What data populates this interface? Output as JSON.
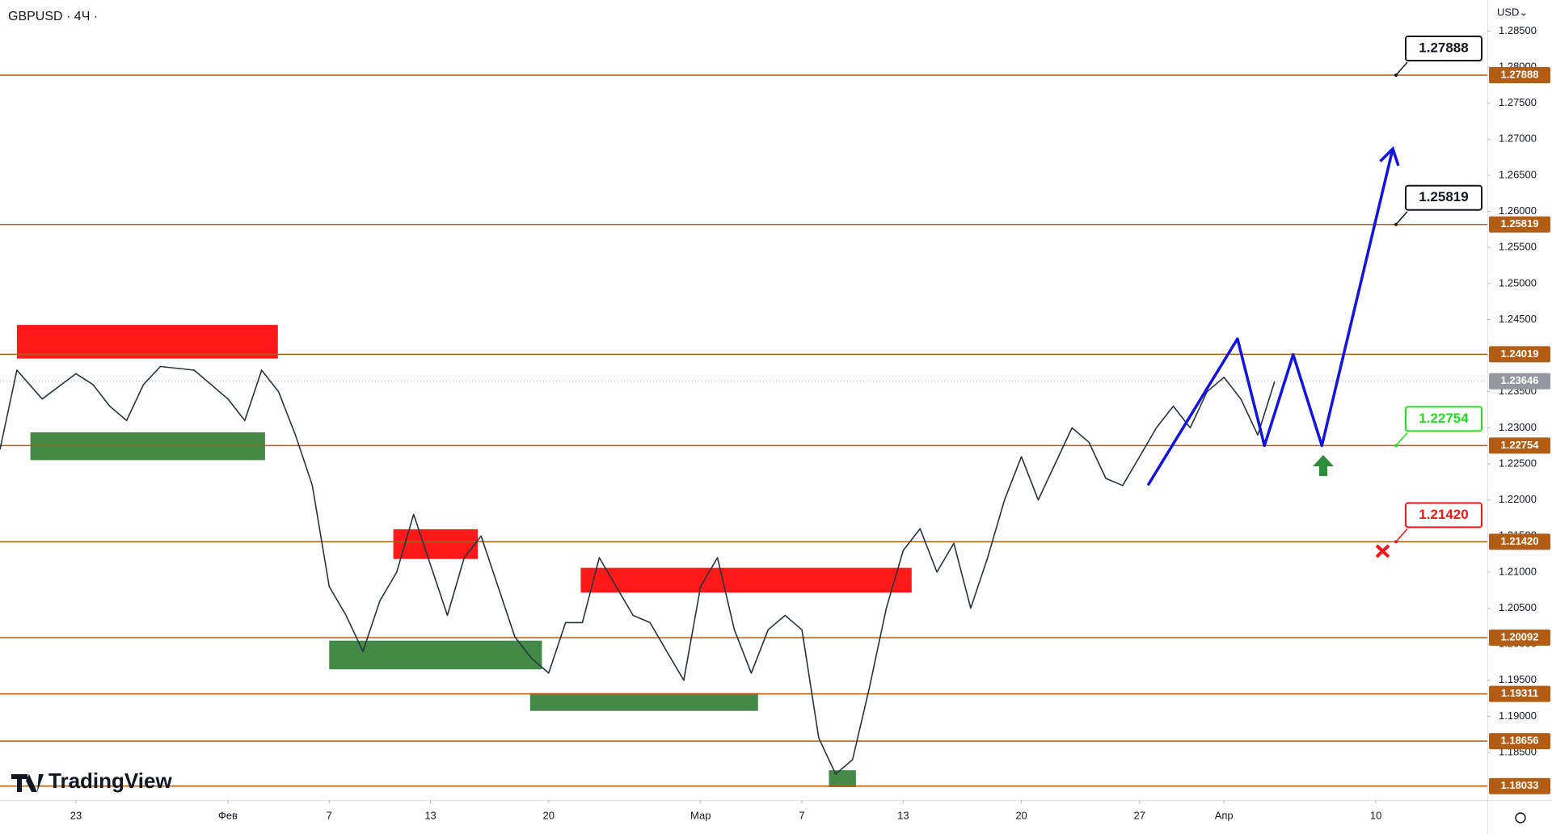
{
  "chart_data": {
    "type": "line",
    "title": "GBPUSD · 4Ч ·",
    "currency": "USD⌄",
    "brand": "TradingView",
    "xlim": [
      -4.5,
      83.6
    ],
    "ylim": [
      1.1784,
      1.2893
    ],
    "xticks": [
      {
        "value": 0,
        "label": "23"
      },
      {
        "value": 9,
        "label": "Фев"
      },
      {
        "value": 15,
        "label": "7"
      },
      {
        "value": 21,
        "label": "13"
      },
      {
        "value": 28,
        "label": "20"
      },
      {
        "value": 37,
        "label": "Мар"
      },
      {
        "value": 43,
        "label": "7"
      },
      {
        "value": 49,
        "label": "13"
      },
      {
        "value": 56,
        "label": "20"
      },
      {
        "value": 63,
        "label": "27"
      },
      {
        "value": 68,
        "label": "Апр"
      },
      {
        "value": 77,
        "label": "10"
      }
    ],
    "yticks": [
      {
        "value": 1.185,
        "label": "1.18500"
      },
      {
        "value": 1.19,
        "label": "1.19000"
      },
      {
        "value": 1.195,
        "label": "1.19500"
      },
      {
        "value": 1.2,
        "label": "1.20000"
      },
      {
        "value": 1.205,
        "label": "1.20500"
      },
      {
        "value": 1.21,
        "label": "1.21000"
      },
      {
        "value": 1.215,
        "label": "1.21500"
      },
      {
        "value": 1.22,
        "label": "1.22000"
      },
      {
        "value": 1.225,
        "label": "1.22500"
      },
      {
        "value": 1.23,
        "label": "1.23000"
      },
      {
        "value": 1.235,
        "label": "1.23500"
      },
      {
        "value": 1.24,
        "label": "1.24000"
      },
      {
        "value": 1.245,
        "label": "1.24500"
      },
      {
        "value": 1.25,
        "label": "1.25000"
      },
      {
        "value": 1.255,
        "label": "1.25500"
      },
      {
        "value": 1.26,
        "label": "1.26000"
      },
      {
        "value": 1.265,
        "label": "1.26500"
      },
      {
        "value": 1.27,
        "label": "1.27000"
      },
      {
        "value": 1.275,
        "label": "1.27500"
      },
      {
        "value": 1.28,
        "label": "1.28000"
      },
      {
        "value": 1.285,
        "label": "1.28500"
      }
    ],
    "level_color": "#b35c14",
    "levels": [
      {
        "value": 1.27888,
        "label": "1.27888"
      },
      {
        "value": 1.25819,
        "label": "1.25819"
      },
      {
        "value": 1.24019,
        "label": "1.24019"
      },
      {
        "value": 1.22754,
        "label": "1.22754"
      },
      {
        "value": 1.2142,
        "label": "1.21420"
      },
      {
        "value": 1.20092,
        "label": "1.20092"
      },
      {
        "value": 1.19311,
        "label": "1.19311"
      },
      {
        "value": 1.18656,
        "label": "1.18656"
      },
      {
        "value": 1.18033,
        "label": "1.18033"
      }
    ],
    "last_price": {
      "value": 1.23646,
      "label": "1.23646",
      "color": "#9598a1"
    },
    "callouts": [
      {
        "value": 1.27888,
        "label": "1.27888",
        "color": "#131722"
      },
      {
        "value": 1.25819,
        "label": "1.25819",
        "color": "#131722"
      },
      {
        "value": 1.22754,
        "label": "1.22754",
        "color": "#22dd22"
      },
      {
        "value": 1.2142,
        "label": "1.21420",
        "color": "#f01818"
      }
    ],
    "zones": [
      {
        "x": [
          -3.5,
          11.96
        ],
        "y": [
          1.2396,
          1.24426
        ],
        "color": "#ff0000"
      },
      {
        "x": [
          -2.7,
          11.2
        ],
        "y": [
          1.22552,
          1.22937
        ],
        "color": "#2e7d32"
      },
      {
        "x": [
          18.8,
          23.8
        ],
        "y": [
          1.21182,
          1.21594
        ],
        "color": "#ff0000"
      },
      {
        "x": [
          15.0,
          27.6
        ],
        "y": [
          1.19652,
          1.2005
        ],
        "color": "#2e7d32"
      },
      {
        "x": [
          29.9,
          49.5
        ],
        "y": [
          1.20716,
          1.21059
        ],
        "color": "#ff0000"
      },
      {
        "x": [
          26.9,
          40.4
        ],
        "y": [
          1.19076,
          1.19323
        ],
        "color": "#2e7d32"
      },
      {
        "x": [
          44.6,
          46.2
        ],
        "y": [
          1.1802,
          1.18253
        ],
        "color": "#2e7d32"
      }
    ],
    "series": [
      {
        "color": "#26343f",
        "x": [
          -4.5,
          -3.5,
          -2,
          0,
          1,
          2,
          3,
          4,
          5,
          7,
          9,
          10,
          11,
          12,
          13,
          14,
          15,
          16,
          17,
          18,
          19,
          20,
          21,
          22,
          23,
          24,
          25,
          26,
          27,
          28,
          29,
          30,
          31,
          32,
          33,
          34,
          35,
          36,
          37,
          38,
          39,
          40,
          41,
          42,
          43,
          44,
          45,
          46,
          47,
          48,
          49,
          50,
          51,
          52,
          53,
          54,
          55,
          56,
          57,
          58,
          59,
          60,
          61,
          62,
          63,
          64,
          65,
          66,
          67,
          68,
          69,
          70,
          71
        ],
        "values": [
          1.227,
          1.238,
          1.234,
          1.2375,
          1.236,
          1.233,
          1.231,
          1.236,
          1.2385,
          1.238,
          1.234,
          1.231,
          1.238,
          1.235,
          1.229,
          1.222,
          1.208,
          1.204,
          1.199,
          1.206,
          1.21,
          1.218,
          1.211,
          1.204,
          1.212,
          1.215,
          1.208,
          1.201,
          1.198,
          1.196,
          1.203,
          1.203,
          1.212,
          1.208,
          1.204,
          1.203,
          1.199,
          1.195,
          1.208,
          1.212,
          1.202,
          1.196,
          1.202,
          1.204,
          1.202,
          1.187,
          1.182,
          1.184,
          1.194,
          1.205,
          1.213,
          1.216,
          1.21,
          1.214,
          1.205,
          1.212,
          1.22,
          1.226,
          1.22,
          1.225,
          1.23,
          1.228,
          1.223,
          1.222,
          1.226,
          1.23,
          1.233,
          1.23,
          1.235,
          1.237,
          1.234,
          1.229,
          1.2364
        ]
      },
      {
        "color": "#1414e0",
        "x": [
          63.5,
          68.8,
          70.4,
          72.1,
          73.8,
          78.0
        ],
        "values": [
          1.22204,
          1.24234,
          1.22753,
          1.24014,
          1.22753,
          1.26868
        ]
      }
    ]
  }
}
